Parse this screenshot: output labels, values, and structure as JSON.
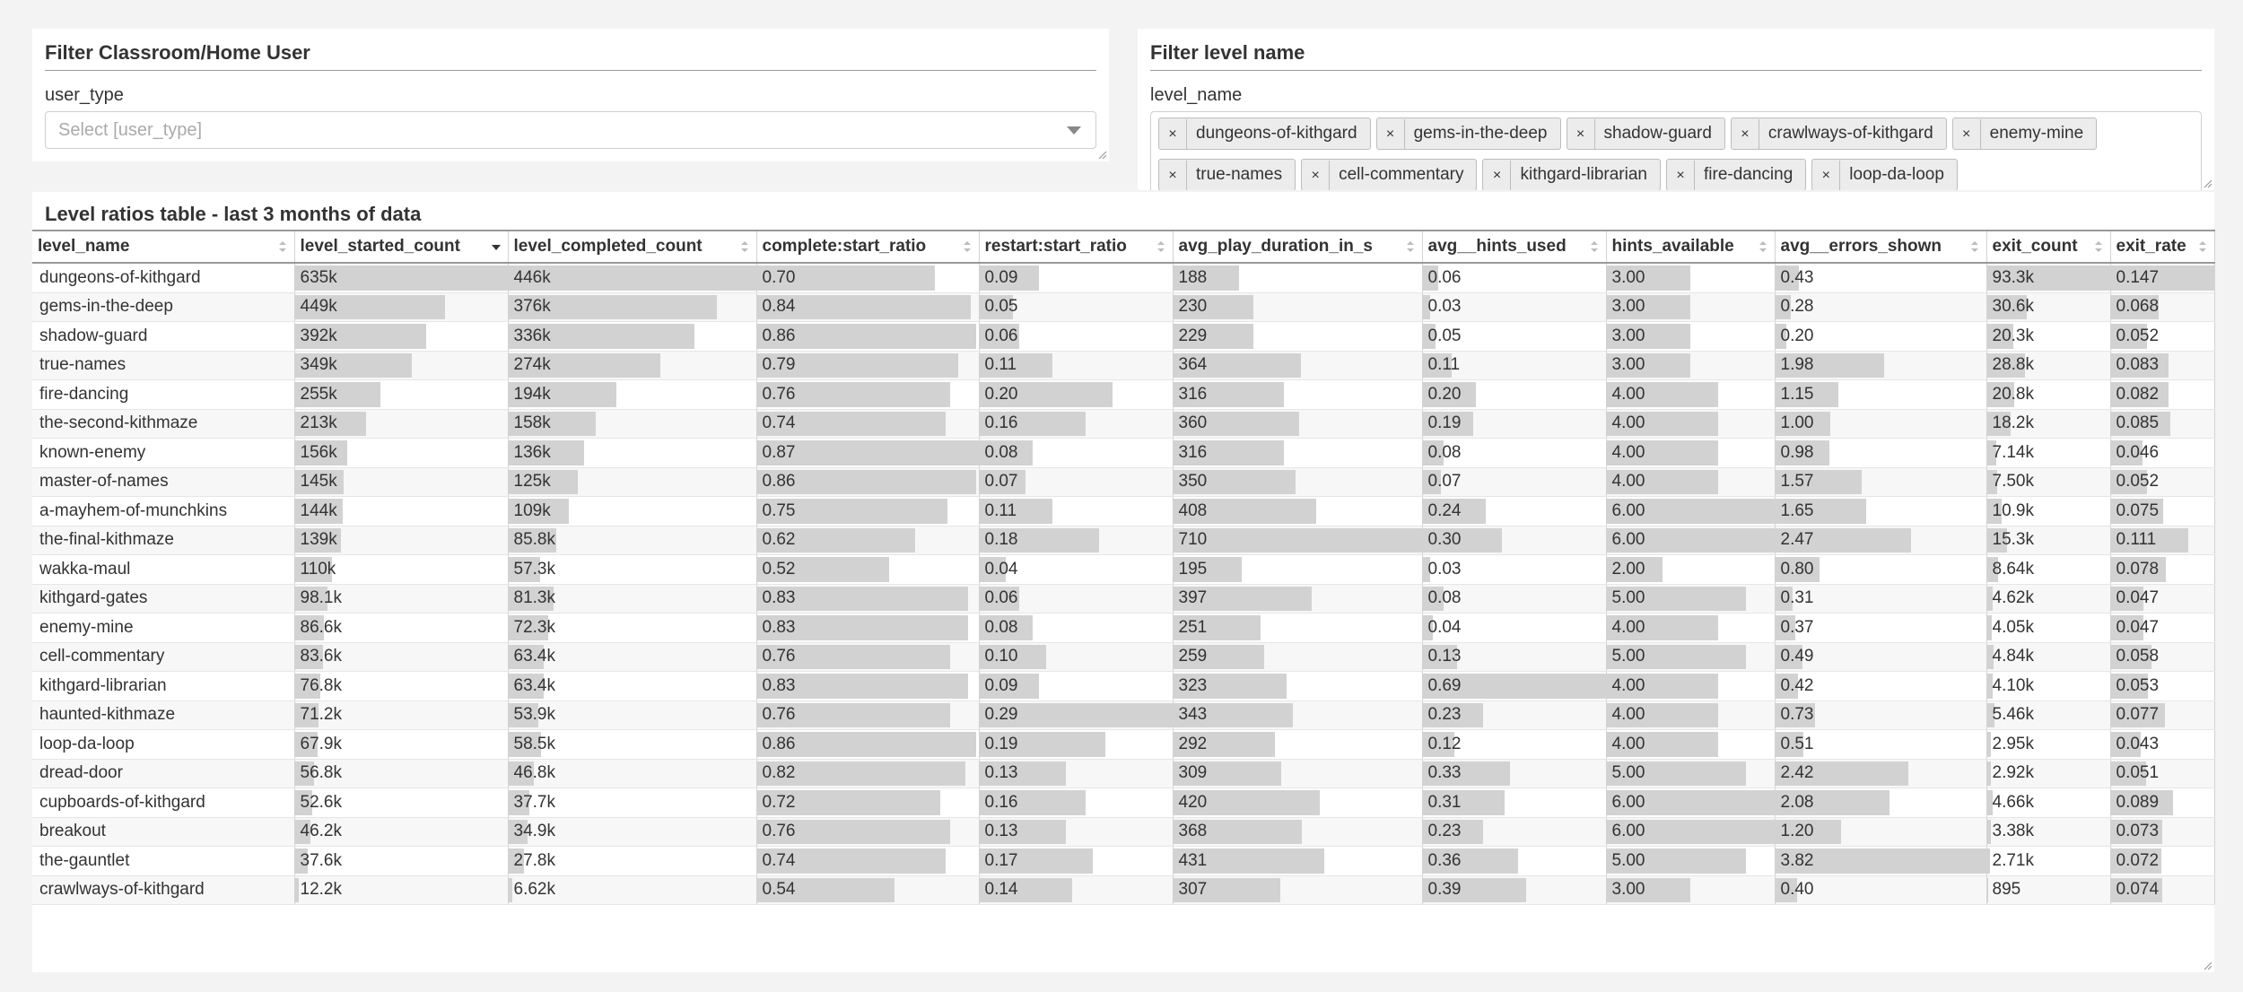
{
  "filters": {
    "user_type": {
      "title": "Filter Classroom/Home User",
      "label": "user_type",
      "placeholder": "Select [user_type]"
    },
    "level_name": {
      "title": "Filter level name",
      "label": "level_name",
      "tags": [
        "dungeons-of-kithgard",
        "gems-in-the-deep",
        "shadow-guard",
        "crawlways-of-kithgard",
        "enemy-mine",
        "true-names",
        "cell-commentary",
        "kithgard-librarian",
        "fire-dancing",
        "loop-da-loop"
      ]
    }
  },
  "table": {
    "title": "Level ratios table - last 3 months of data",
    "sorted_column": "level_started_count",
    "columns": [
      "level_name",
      "level_started_count",
      "level_completed_count",
      "complete:start_ratio",
      "restart:start_ratio",
      "avg_play_duration_in_s",
      "avg__hints_used",
      "hints_available",
      "avg__errors_shown",
      "exit_count",
      "exit_rate"
    ],
    "rows": [
      [
        "dungeons-of-kithgard",
        "635k",
        "446k",
        "0.70",
        "0.09",
        "188",
        "0.06",
        "3.00",
        "0.43",
        "93.3k",
        "0.147"
      ],
      [
        "gems-in-the-deep",
        "449k",
        "376k",
        "0.84",
        "0.05",
        "230",
        "0.03",
        "3.00",
        "0.28",
        "30.6k",
        "0.068"
      ],
      [
        "shadow-guard",
        "392k",
        "336k",
        "0.86",
        "0.06",
        "229",
        "0.05",
        "3.00",
        "0.20",
        "20.3k",
        "0.052"
      ],
      [
        "true-names",
        "349k",
        "274k",
        "0.79",
        "0.11",
        "364",
        "0.11",
        "3.00",
        "1.98",
        "28.8k",
        "0.083"
      ],
      [
        "fire-dancing",
        "255k",
        "194k",
        "0.76",
        "0.20",
        "316",
        "0.20",
        "4.00",
        "1.15",
        "20.8k",
        "0.082"
      ],
      [
        "the-second-kithmaze",
        "213k",
        "158k",
        "0.74",
        "0.16",
        "360",
        "0.19",
        "4.00",
        "1.00",
        "18.2k",
        "0.085"
      ],
      [
        "known-enemy",
        "156k",
        "136k",
        "0.87",
        "0.08",
        "316",
        "0.08",
        "4.00",
        "0.98",
        "7.14k",
        "0.046"
      ],
      [
        "master-of-names",
        "145k",
        "125k",
        "0.86",
        "0.07",
        "350",
        "0.07",
        "4.00",
        "1.57",
        "7.50k",
        "0.052"
      ],
      [
        "a-mayhem-of-munchkins",
        "144k",
        "109k",
        "0.75",
        "0.11",
        "408",
        "0.24",
        "6.00",
        "1.65",
        "10.9k",
        "0.075"
      ],
      [
        "the-final-kithmaze",
        "139k",
        "85.8k",
        "0.62",
        "0.18",
        "710",
        "0.30",
        "6.00",
        "2.47",
        "15.3k",
        "0.111"
      ],
      [
        "wakka-maul",
        "110k",
        "57.3k",
        "0.52",
        "0.04",
        "195",
        "0.03",
        "2.00",
        "0.80",
        "8.64k",
        "0.078"
      ],
      [
        "kithgard-gates",
        "98.1k",
        "81.3k",
        "0.83",
        "0.06",
        "397",
        "0.08",
        "5.00",
        "0.31",
        "4.62k",
        "0.047"
      ],
      [
        "enemy-mine",
        "86.6k",
        "72.3k",
        "0.83",
        "0.08",
        "251",
        "0.04",
        "4.00",
        "0.37",
        "4.05k",
        "0.047"
      ],
      [
        "cell-commentary",
        "83.6k",
        "63.4k",
        "0.76",
        "0.10",
        "259",
        "0.13",
        "5.00",
        "0.49",
        "4.84k",
        "0.058"
      ],
      [
        "kithgard-librarian",
        "76.8k",
        "63.4k",
        "0.83",
        "0.09",
        "323",
        "0.69",
        "4.00",
        "0.42",
        "4.10k",
        "0.053"
      ],
      [
        "haunted-kithmaze",
        "71.2k",
        "53.9k",
        "0.76",
        "0.29",
        "343",
        "0.23",
        "4.00",
        "0.73",
        "5.46k",
        "0.077"
      ],
      [
        "loop-da-loop",
        "67.9k",
        "58.5k",
        "0.86",
        "0.19",
        "292",
        "0.12",
        "4.00",
        "0.51",
        "2.95k",
        "0.043"
      ],
      [
        "dread-door",
        "56.8k",
        "46.8k",
        "0.82",
        "0.13",
        "309",
        "0.33",
        "5.00",
        "2.42",
        "2.92k",
        "0.051"
      ],
      [
        "cupboards-of-kithgard",
        "52.6k",
        "37.7k",
        "0.72",
        "0.16",
        "420",
        "0.31",
        "6.00",
        "2.08",
        "4.66k",
        "0.089"
      ],
      [
        "breakout",
        "46.2k",
        "34.9k",
        "0.76",
        "0.13",
        "368",
        "0.23",
        "6.00",
        "1.20",
        "3.38k",
        "0.073"
      ],
      [
        "the-gauntlet",
        "37.6k",
        "27.8k",
        "0.74",
        "0.17",
        "431",
        "0.36",
        "5.00",
        "3.82",
        "2.71k",
        "0.072"
      ],
      [
        "crawlways-of-kithgard",
        "12.2k",
        "6.62k",
        "0.54",
        "0.14",
        "307",
        "0.39",
        "3.00",
        "0.40",
        "895",
        "0.074"
      ]
    ]
  }
}
